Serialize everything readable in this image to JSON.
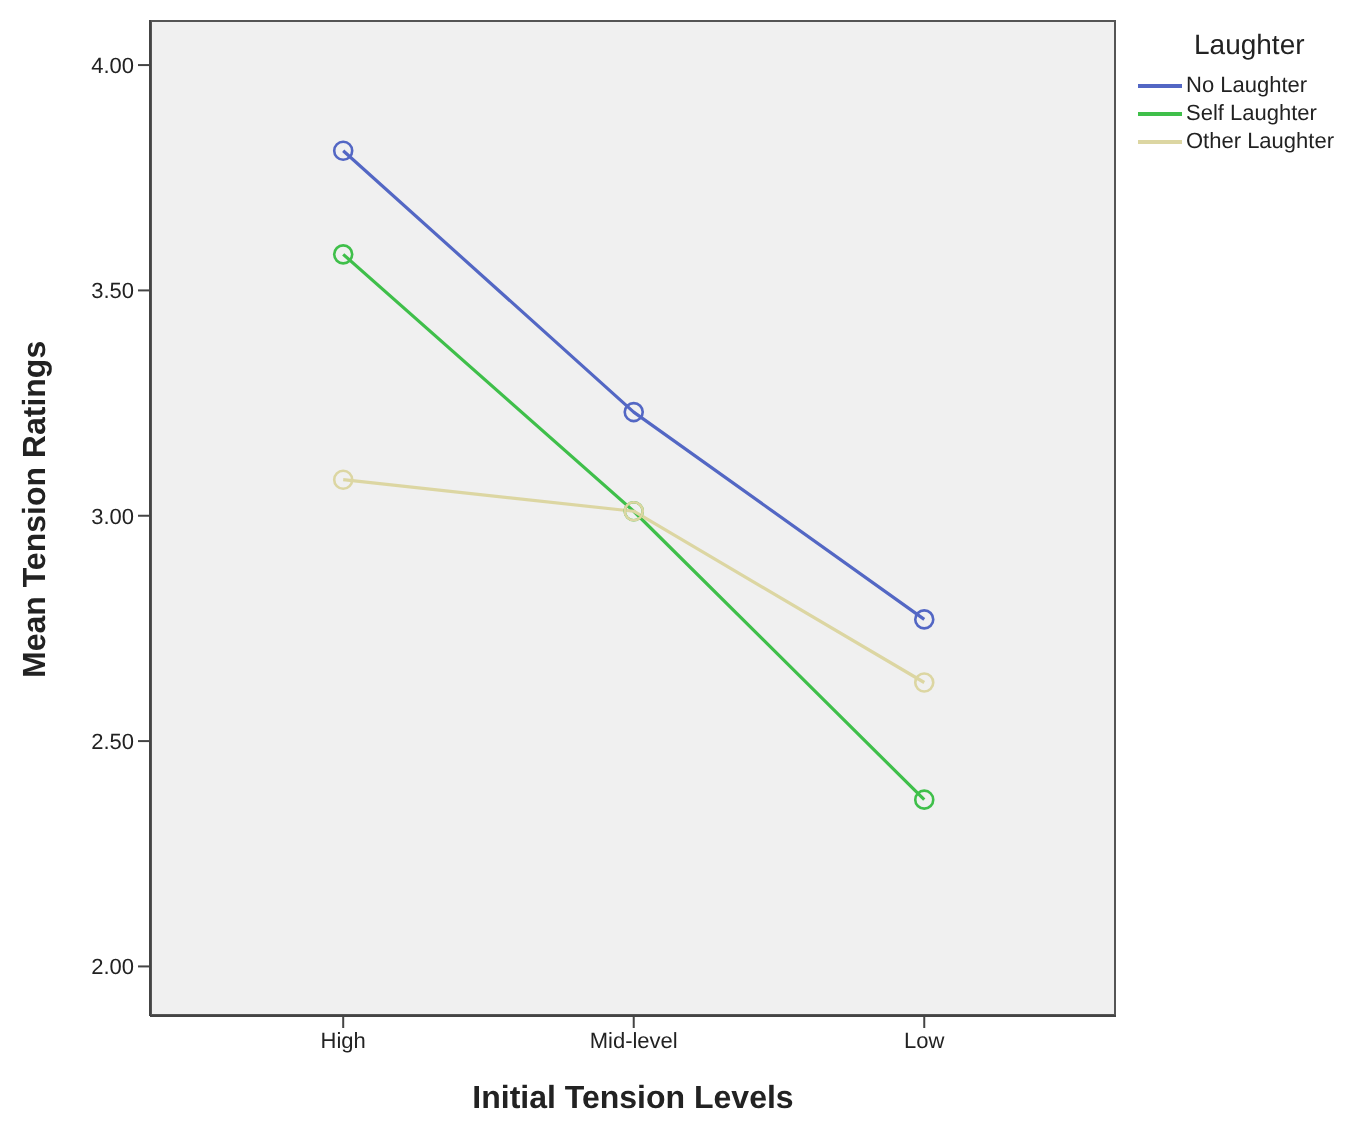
{
  "chart_data": {
    "type": "line",
    "xlabel": "Initial Tension Levels",
    "ylabel": "Mean Tension Ratings",
    "legend_title": "Laughter",
    "categories": [
      "High",
      "Mid-level",
      "Low"
    ],
    "series": [
      {
        "name": "No Laughter",
        "color": "#5367c4",
        "values": [
          3.81,
          3.23,
          2.77
        ]
      },
      {
        "name": "Self Laughter",
        "color": "#3fbf4a",
        "values": [
          3.58,
          3.01,
          2.37
        ]
      },
      {
        "name": "Other Laughter",
        "color": "#dcd6a2",
        "values": [
          3.08,
          3.01,
          2.63
        ]
      }
    ],
    "ylim": [
      1.89,
      4.1
    ],
    "yticks": [
      {
        "value": 2,
        "label": "2.00"
      },
      {
        "value": 2.5,
        "label": "2.50"
      },
      {
        "value": 3,
        "label": "3.00"
      },
      {
        "value": 3.5,
        "label": "3.50"
      },
      {
        "value": 4,
        "label": "4.00"
      }
    ],
    "grid": false,
    "legend": "top right",
    "marker": "circle",
    "line_style": "solid"
  }
}
